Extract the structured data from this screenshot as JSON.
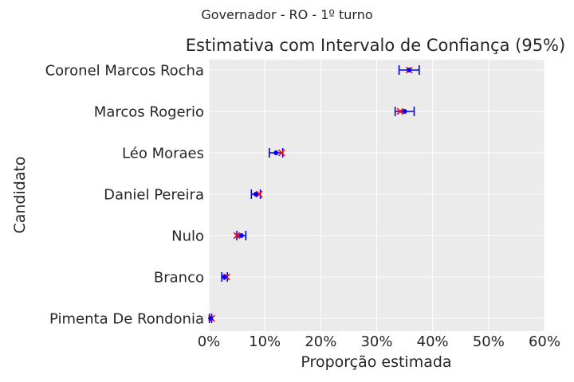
{
  "chart_data": {
    "type": "errorbar",
    "suptitle": "Governador - RO - 1º turno",
    "title": "Estimativa com Intervalo de Confiança (95%)",
    "xlabel": "Proporção estimada",
    "ylabel": "Candidato",
    "xlim": [
      0,
      0.6
    ],
    "xticks": [
      0,
      0.1,
      0.2,
      0.3,
      0.4,
      0.5,
      0.6
    ],
    "xtick_labels": [
      "0%",
      "10%",
      "20%",
      "30%",
      "40%",
      "50%",
      "60%"
    ],
    "grid": true,
    "categories": [
      "Coronel Marcos Rocha",
      "Marcos Rogerio",
      "Léo Moraes",
      "Daniel Pereira",
      "Nulo",
      "Branco",
      "Pimenta De Rondonia"
    ],
    "series": [
      {
        "marker": "dot",
        "color": "#0000ff",
        "values": [
          0.358,
          0.35,
          0.12,
          0.084,
          0.058,
          0.028,
          0.003
        ],
        "ci_low": [
          0.34,
          0.333,
          0.108,
          0.076,
          0.05,
          0.023,
          0.001
        ],
        "ci_high": [
          0.376,
          0.367,
          0.132,
          0.092,
          0.066,
          0.033,
          0.005
        ]
      },
      {
        "marker": "x",
        "color": "#ff0000",
        "values": [
          0.358,
          0.342,
          0.13,
          0.09,
          0.05,
          0.032,
          0.005
        ]
      }
    ]
  },
  "colors": {
    "plot_background": "#ebebeb",
    "grid": "#ffffff",
    "errorbar": "#0000ff",
    "reference_marker": "#ff0000"
  }
}
